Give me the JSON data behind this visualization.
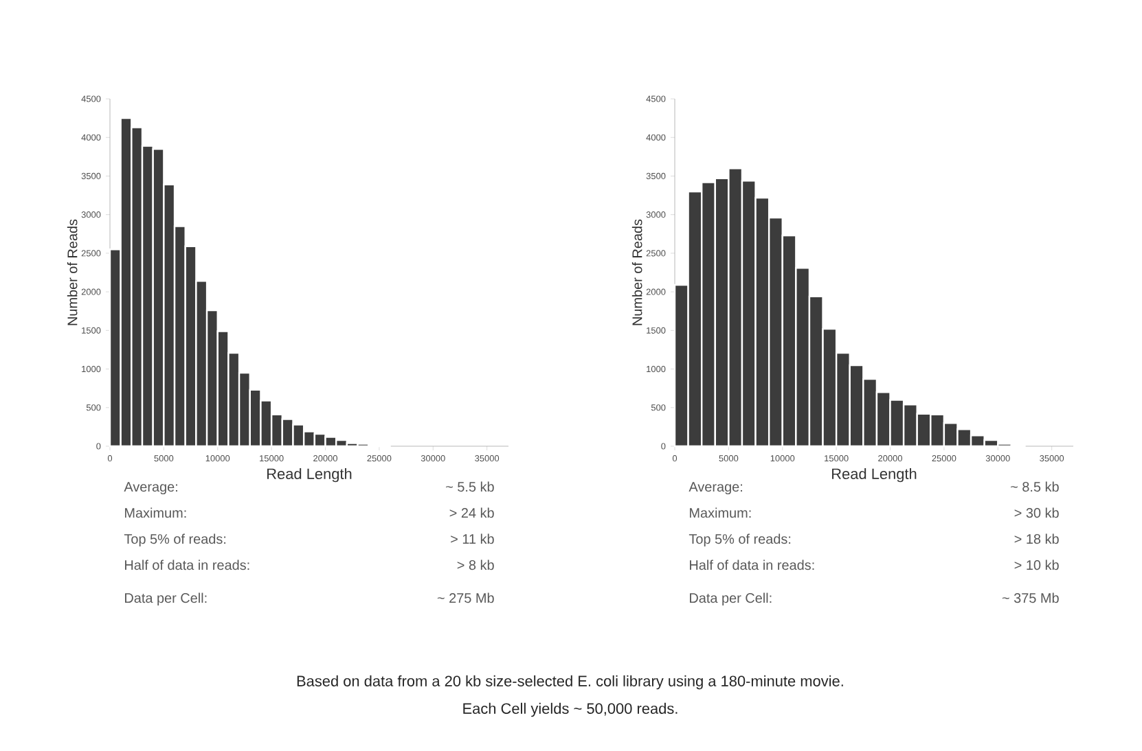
{
  "chart_data": [
    {
      "type": "histogram",
      "xlabel": "Read Length",
      "ylabel": "Number of Reads",
      "color": "#3c3c3c",
      "bins": [
        0,
        1000,
        2000,
        3000,
        4000,
        5000,
        6000,
        7000,
        8000,
        9000,
        10000,
        11000,
        12000,
        13000,
        14000,
        15000,
        16000,
        17000,
        18000,
        19000,
        20000,
        21000,
        22000,
        23000,
        24000,
        25000,
        26000
      ],
      "values": [
        2550,
        4250,
        4130,
        3890,
        3850,
        3390,
        2850,
        2590,
        2140,
        1760,
        1490,
        1210,
        950,
        730,
        590,
        410,
        350,
        280,
        190,
        160,
        120,
        80,
        40,
        30,
        20,
        20
      ],
      "xlim": [
        0,
        37000
      ],
      "ylim": [
        0,
        4500
      ],
      "xticks": [
        0,
        5000,
        10000,
        15000,
        20000,
        25000,
        30000,
        35000
      ],
      "yticks": [
        0,
        500,
        1000,
        1500,
        2000,
        2500,
        3000,
        3500,
        4000,
        4500
      ],
      "annotations": [
        "Average:",
        "~ 5.5 kb",
        "Maximum:",
        "> 24 kb",
        "Top 5% of reads:",
        "> 11 kb",
        "Half of data in reads:",
        "> 8 kb",
        "Data per Cell:",
        "~ 275 Mb"
      ]
    },
    {
      "type": "histogram",
      "xlabel": "Read Length",
      "ylabel": "Number of Reads",
      "color": "#3c3c3c",
      "bins": [
        0,
        1250,
        2500,
        3750,
        5000,
        6250,
        7500,
        8750,
        10000,
        11250,
        12500,
        13750,
        15000,
        16250,
        17500,
        18750,
        20000,
        21250,
        22500,
        23750,
        25000,
        26250,
        27500,
        28750,
        30000,
        31250,
        32500
      ],
      "values": [
        2090,
        3300,
        3420,
        3470,
        3600,
        3440,
        3220,
        2960,
        2730,
        2310,
        1940,
        1520,
        1210,
        1050,
        870,
        700,
        600,
        540,
        420,
        410,
        300,
        220,
        140,
        80,
        30,
        10
      ],
      "xlim": [
        0,
        37000
      ],
      "ylim": [
        0,
        4500
      ],
      "xticks": [
        0,
        5000,
        10000,
        15000,
        20000,
        25000,
        30000,
        35000
      ],
      "yticks": [
        0,
        500,
        1000,
        1500,
        2000,
        2500,
        3000,
        3500,
        4000,
        4500
      ],
      "annotations": [
        "Average:",
        "~ 8.5 kb",
        "Maximum:",
        "> 30 kb",
        "Top 5% of reads:",
        "> 18 kb",
        "Half of data in reads:",
        "> 10 kb",
        "Data per Cell:",
        "~ 375 Mb"
      ]
    },
    {
      "type": "other",
      "annotations": [
        "Based on data from a 20 kb size-selected E. coli library using a 180-minute movie.",
        "Each Cell yields ~ 50,000 reads."
      ]
    }
  ]
}
